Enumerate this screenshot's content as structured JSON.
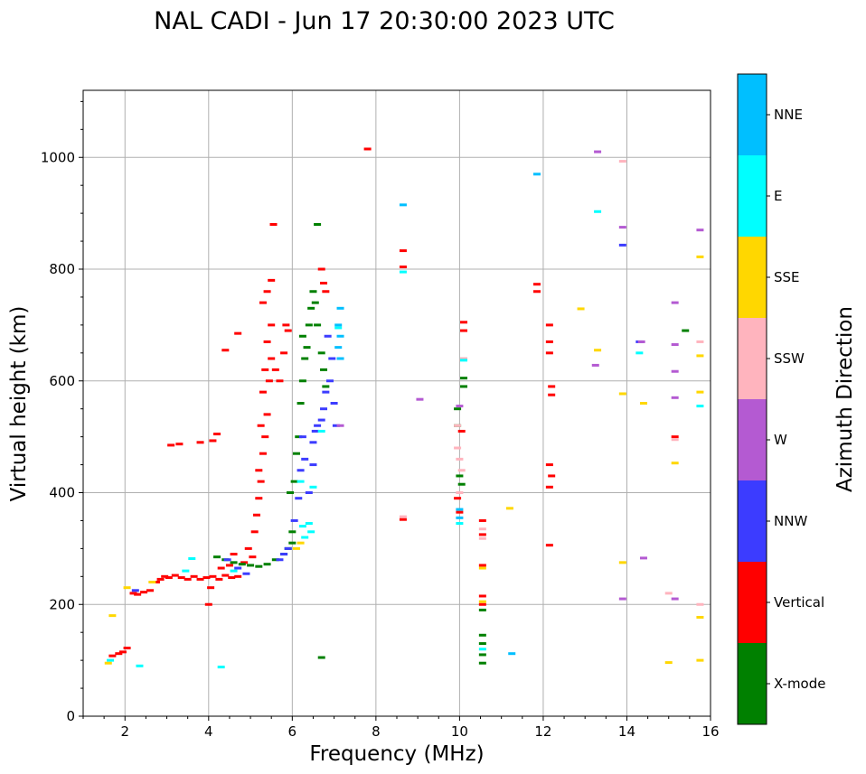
{
  "chart_data": {
    "type": "scatter",
    "title": "NAL CADI - Jun 17 20:30:00 2023 UTC",
    "xlabel": "Frequency (MHz)",
    "ylabel": "Virtual height (km)",
    "xlim": [
      1,
      16
    ],
    "ylim": [
      0,
      1120
    ],
    "grid": true,
    "x_ticks": [
      2,
      4,
      6,
      8,
      10,
      12,
      14,
      16
    ],
    "y_ticks": [
      0,
      200,
      400,
      600,
      800,
      1000
    ],
    "colorbar": {
      "label": "Azimuth Direction",
      "categories": [
        "X-mode",
        "Vertical",
        "NNW",
        "W",
        "SSW",
        "SSE",
        "E",
        "NNE"
      ],
      "colors": {
        "X-mode": "#008000",
        "Vertical": "#ff0000",
        "NNW": "#3c3cff",
        "W": "#b45ad2",
        "SSW": "#ffb4be",
        "SSE": "#ffd700",
        "E": "#00ffff",
        "NNE": "#00bfff"
      }
    },
    "series": [
      {
        "name": "Vertical",
        "points": [
          [
            1.7,
            108
          ],
          [
            1.85,
            112
          ],
          [
            1.95,
            115
          ],
          [
            2.05,
            122
          ],
          [
            2.2,
            220
          ],
          [
            2.3,
            218
          ],
          [
            2.45,
            222
          ],
          [
            2.6,
            225
          ],
          [
            2.75,
            240
          ],
          [
            2.85,
            245
          ],
          [
            2.95,
            250
          ],
          [
            3.05,
            248
          ],
          [
            3.2,
            252
          ],
          [
            3.35,
            248
          ],
          [
            3.5,
            245
          ],
          [
            3.65,
            250
          ],
          [
            3.8,
            245
          ],
          [
            3.95,
            248
          ],
          [
            4.1,
            250
          ],
          [
            4.25,
            245
          ],
          [
            4.4,
            252
          ],
          [
            4.55,
            248
          ],
          [
            4.7,
            250
          ],
          [
            4.3,
            265
          ],
          [
            4.5,
            270
          ],
          [
            4.6,
            290
          ],
          [
            4.85,
            275
          ],
          [
            4.95,
            300
          ],
          [
            5.05,
            285
          ],
          [
            5.1,
            330
          ],
          [
            5.15,
            360
          ],
          [
            5.2,
            390
          ],
          [
            5.25,
            420
          ],
          [
            5.2,
            440
          ],
          [
            5.3,
            470
          ],
          [
            5.35,
            500
          ],
          [
            5.25,
            520
          ],
          [
            5.4,
            540
          ],
          [
            5.3,
            580
          ],
          [
            5.45,
            600
          ],
          [
            5.35,
            620
          ],
          [
            5.5,
            640
          ],
          [
            5.4,
            670
          ],
          [
            5.5,
            700
          ],
          [
            5.3,
            740
          ],
          [
            5.4,
            760
          ],
          [
            5.5,
            780
          ],
          [
            5.6,
            620
          ],
          [
            5.7,
            600
          ],
          [
            5.8,
            650
          ],
          [
            5.85,
            700
          ],
          [
            5.9,
            690
          ],
          [
            3.1,
            485
          ],
          [
            3.3,
            487
          ],
          [
            4.1,
            493
          ],
          [
            4.2,
            505
          ],
          [
            3.8,
            490
          ],
          [
            4.4,
            655
          ],
          [
            4.7,
            685
          ],
          [
            4.0,
            200
          ],
          [
            4.05,
            230
          ],
          [
            6.7,
            800
          ],
          [
            6.75,
            775
          ],
          [
            6.8,
            760
          ],
          [
            5.55,
            880
          ],
          [
            7.8,
            1015
          ],
          [
            8.65,
            833
          ],
          [
            8.65,
            804
          ],
          [
            8.65,
            352
          ],
          [
            10.1,
            705
          ],
          [
            10.05,
            510
          ],
          [
            10.1,
            690
          ],
          [
            9.95,
            390
          ],
          [
            10.0,
            365
          ],
          [
            10.55,
            350
          ],
          [
            10.55,
            325
          ],
          [
            10.55,
            270
          ],
          [
            10.55,
            215
          ],
          [
            10.55,
            200
          ],
          [
            11.85,
            773
          ],
          [
            11.85,
            760
          ],
          [
            12.15,
            700
          ],
          [
            12.15,
            670
          ],
          [
            12.15,
            650
          ],
          [
            12.2,
            590
          ],
          [
            12.2,
            575
          ],
          [
            12.15,
            450
          ],
          [
            12.2,
            430
          ],
          [
            12.15,
            410
          ],
          [
            12.15,
            306
          ],
          [
            15.15,
            500
          ]
        ]
      },
      {
        "name": "X-mode",
        "points": [
          [
            4.2,
            285
          ],
          [
            4.4,
            280
          ],
          [
            4.6,
            275
          ],
          [
            4.8,
            272
          ],
          [
            5.0,
            270
          ],
          [
            5.2,
            268
          ],
          [
            5.4,
            272
          ],
          [
            5.6,
            280
          ],
          [
            5.8,
            290
          ],
          [
            5.9,
            300
          ],
          [
            6.0,
            310
          ],
          [
            6.0,
            330
          ],
          [
            5.95,
            400
          ],
          [
            6.05,
            420
          ],
          [
            6.1,
            470
          ],
          [
            6.15,
            500
          ],
          [
            6.2,
            560
          ],
          [
            6.25,
            600
          ],
          [
            6.3,
            640
          ],
          [
            6.25,
            680
          ],
          [
            6.4,
            700
          ],
          [
            6.45,
            730
          ],
          [
            6.5,
            760
          ],
          [
            6.55,
            740
          ],
          [
            6.6,
            700
          ],
          [
            6.7,
            650
          ],
          [
            6.75,
            620
          ],
          [
            6.8,
            590
          ],
          [
            6.35,
            660
          ],
          [
            6.6,
            880
          ],
          [
            6.7,
            105
          ],
          [
            9.95,
            550
          ],
          [
            9.95,
            520
          ],
          [
            10.0,
            430
          ],
          [
            10.05,
            415
          ],
          [
            10.1,
            605
          ],
          [
            10.1,
            590
          ],
          [
            10.55,
            190
          ],
          [
            10.55,
            145
          ],
          [
            10.55,
            130
          ],
          [
            10.55,
            110
          ],
          [
            10.55,
            95
          ],
          [
            15.4,
            690
          ]
        ]
      },
      {
        "name": "NNW",
        "points": [
          [
            5.7,
            280
          ],
          [
            5.8,
            290
          ],
          [
            5.9,
            300
          ],
          [
            6.05,
            350
          ],
          [
            6.15,
            390
          ],
          [
            6.2,
            440
          ],
          [
            6.3,
            460
          ],
          [
            6.5,
            490
          ],
          [
            6.55,
            510
          ],
          [
            6.6,
            520
          ],
          [
            6.7,
            530
          ],
          [
            6.75,
            550
          ],
          [
            6.8,
            580
          ],
          [
            6.9,
            600
          ],
          [
            6.95,
            640
          ],
          [
            6.85,
            680
          ],
          [
            7.0,
            560
          ],
          [
            7.05,
            520
          ],
          [
            6.4,
            400
          ],
          [
            6.5,
            450
          ],
          [
            6.25,
            500
          ],
          [
            4.45,
            280
          ],
          [
            4.7,
            265
          ],
          [
            4.9,
            255
          ],
          [
            2.25,
            225
          ],
          [
            13.9,
            843
          ],
          [
            14.3,
            670
          ]
        ]
      },
      {
        "name": "W",
        "points": [
          [
            7.15,
            520
          ],
          [
            9.05,
            567
          ],
          [
            10.0,
            555
          ],
          [
            13.3,
            1010
          ],
          [
            13.25,
            628
          ],
          [
            13.9,
            875
          ],
          [
            13.9,
            210
          ],
          [
            14.4,
            283
          ],
          [
            15.15,
            740
          ],
          [
            15.15,
            665
          ],
          [
            15.15,
            617
          ],
          [
            15.15,
            570
          ],
          [
            15.15,
            210
          ],
          [
            15.75,
            870
          ],
          [
            14.35,
            670
          ]
        ]
      },
      {
        "name": "SSW",
        "points": [
          [
            9.95,
            520
          ],
          [
            9.95,
            480
          ],
          [
            10.0,
            460
          ],
          [
            10.05,
            440
          ],
          [
            10.0,
            400
          ],
          [
            10.1,
            640
          ],
          [
            10.55,
            335
          ],
          [
            10.55,
            318
          ],
          [
            8.65,
            357
          ],
          [
            13.9,
            993
          ],
          [
            15.0,
            220
          ],
          [
            15.15,
            495
          ],
          [
            15.75,
            670
          ],
          [
            15.75,
            200
          ]
        ]
      },
      {
        "name": "SSE",
        "points": [
          [
            1.6,
            95
          ],
          [
            1.7,
            180
          ],
          [
            2.05,
            230
          ],
          [
            2.65,
            240
          ],
          [
            6.1,
            300
          ],
          [
            6.2,
            310
          ],
          [
            10.55,
            265
          ],
          [
            10.55,
            205
          ],
          [
            11.2,
            372
          ],
          [
            12.9,
            729
          ],
          [
            13.3,
            655
          ],
          [
            13.9,
            577
          ],
          [
            13.9,
            275
          ],
          [
            14.4,
            560
          ],
          [
            15.0,
            96
          ],
          [
            15.15,
            453
          ],
          [
            15.75,
            822
          ],
          [
            15.75,
            645
          ],
          [
            15.75,
            580
          ],
          [
            15.75,
            177
          ],
          [
            15.75,
            100
          ]
        ]
      },
      {
        "name": "E",
        "points": [
          [
            1.65,
            100
          ],
          [
            2.35,
            90
          ],
          [
            3.45,
            260
          ],
          [
            3.6,
            282
          ],
          [
            4.3,
            88
          ],
          [
            4.6,
            260
          ],
          [
            6.25,
            340
          ],
          [
            6.4,
            345
          ],
          [
            6.45,
            330
          ],
          [
            6.3,
            320
          ],
          [
            6.2,
            420
          ],
          [
            6.5,
            410
          ],
          [
            6.7,
            510
          ],
          [
            7.1,
            695
          ],
          [
            8.65,
            795
          ],
          [
            10.0,
            345
          ],
          [
            10.1,
            637
          ],
          [
            10.55,
            120
          ],
          [
            13.3,
            903
          ],
          [
            14.3,
            650
          ],
          [
            15.75,
            555
          ]
        ]
      },
      {
        "name": "NNE",
        "points": [
          [
            7.15,
            730
          ],
          [
            7.1,
            700
          ],
          [
            7.15,
            680
          ],
          [
            7.1,
            660
          ],
          [
            7.15,
            640
          ],
          [
            8.65,
            915
          ],
          [
            10.0,
            355
          ],
          [
            10.0,
            370
          ],
          [
            11.25,
            112
          ],
          [
            11.85,
            970
          ]
        ]
      }
    ]
  }
}
